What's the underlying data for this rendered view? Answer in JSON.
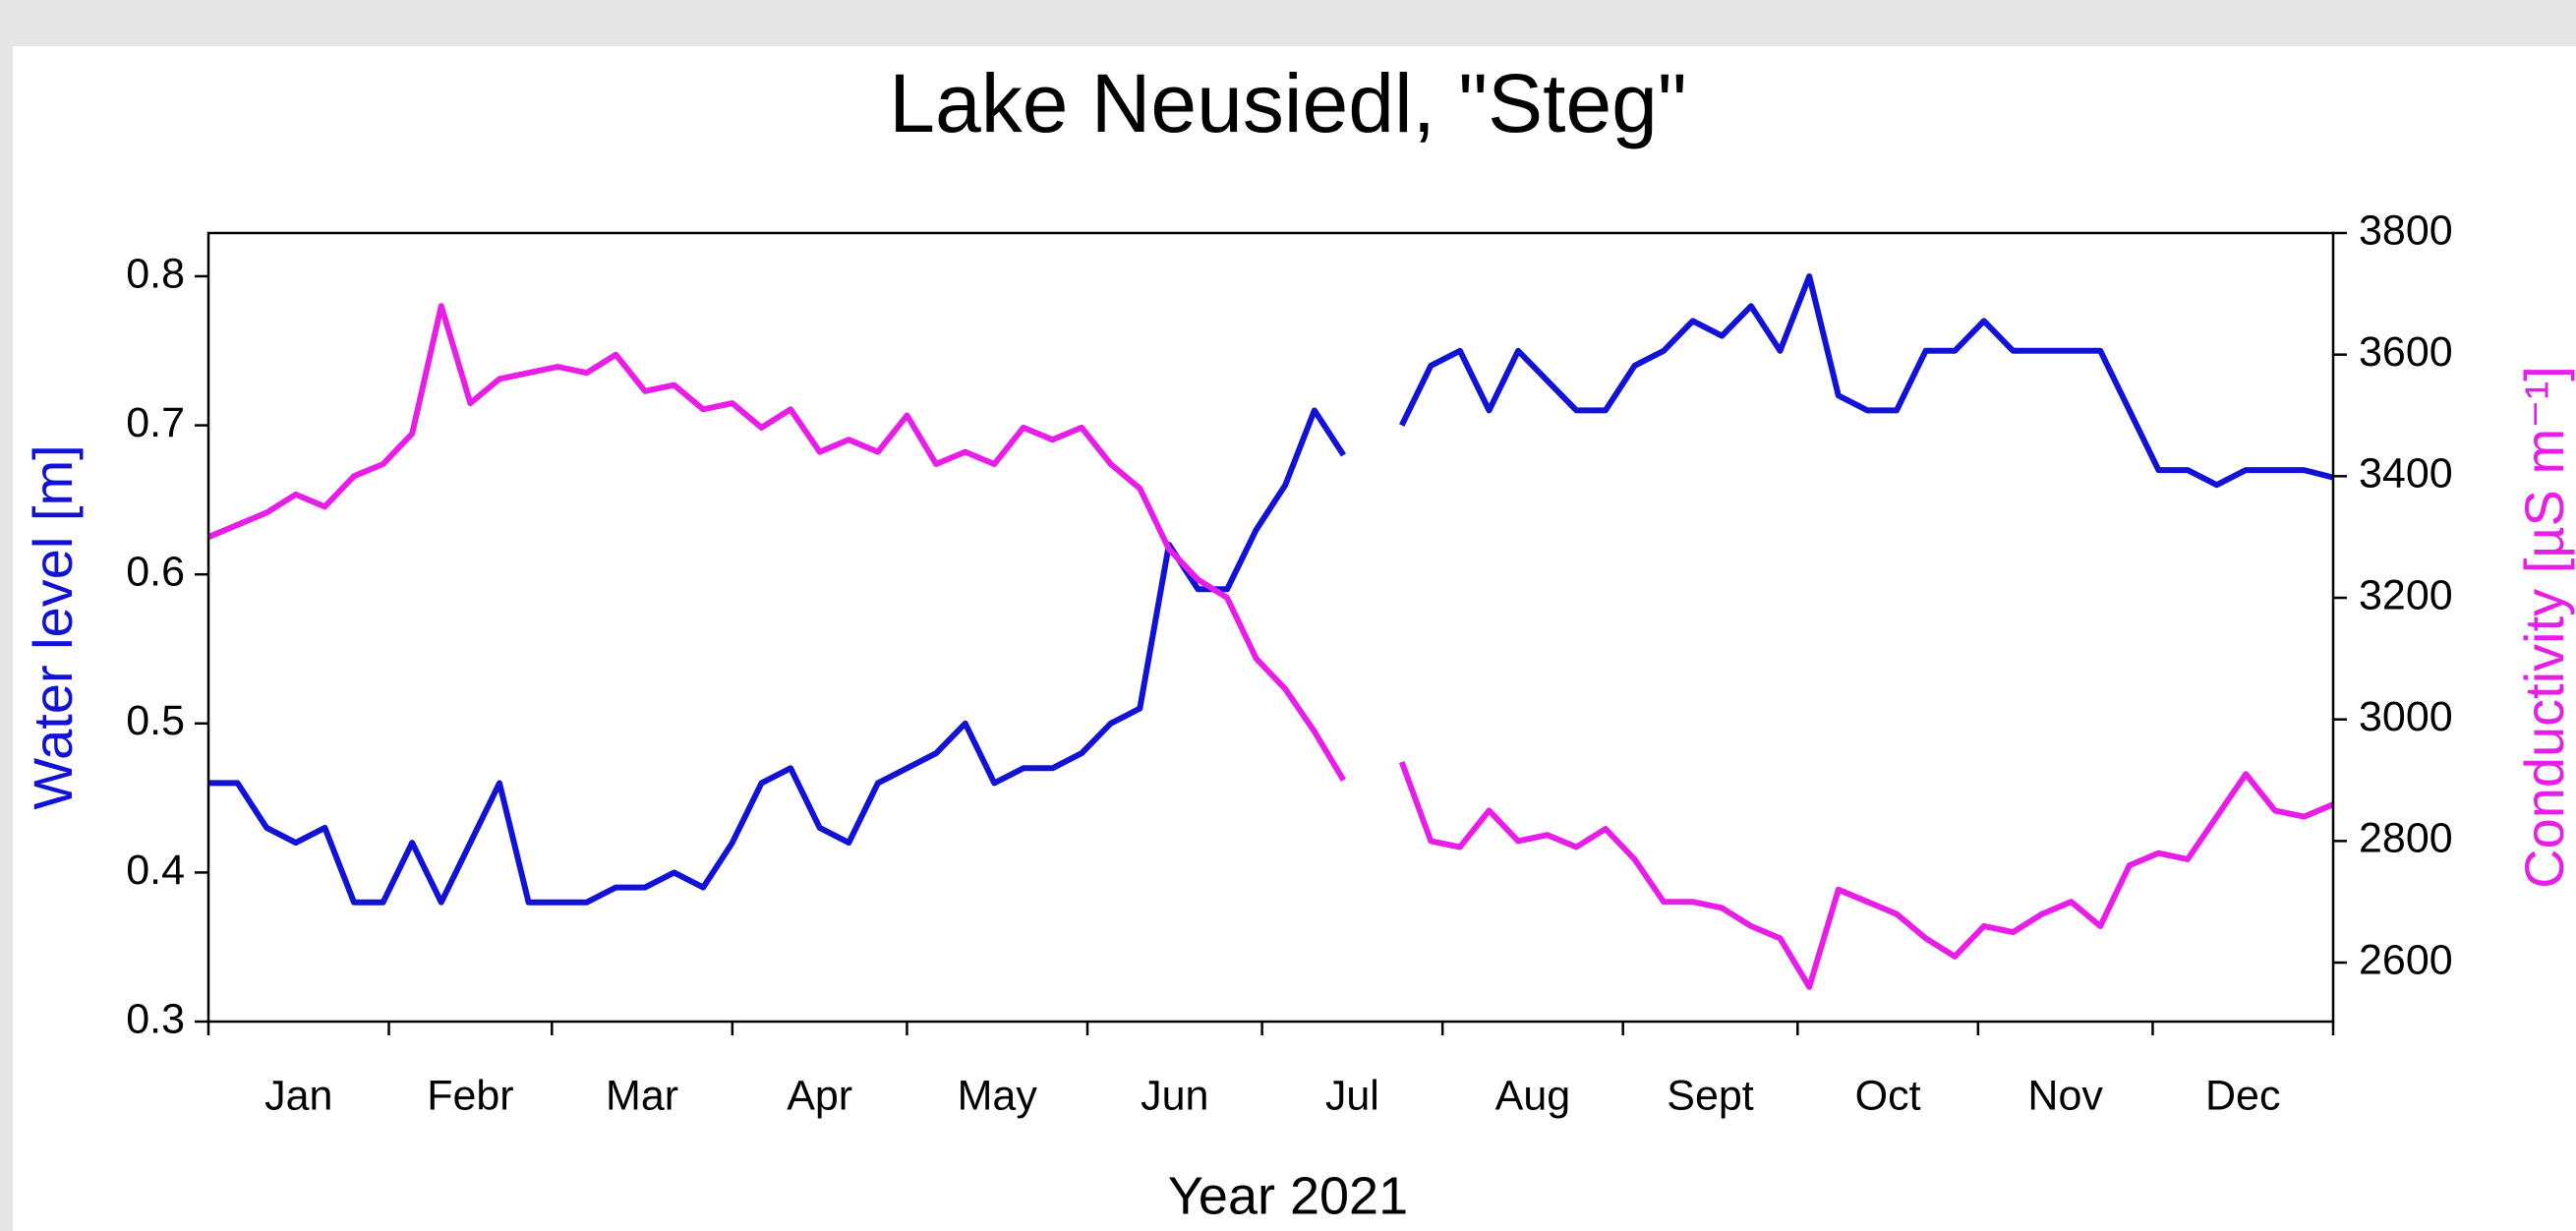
{
  "chart_data": {
    "type": "line",
    "title": "Lake Neusiedl, \"Steg\"",
    "xlabel": "Year 2021",
    "ylabel": "Water level [m]",
    "y2label": "Conductivity [µS m⁻¹]",
    "months": [
      "Jan",
      "Febr",
      "Mar",
      "Apr",
      "May",
      "Jun",
      "Jul",
      "Aug",
      "Sept",
      "Oct",
      "Nov",
      "Dec"
    ],
    "xlim": [
      0,
      365
    ],
    "xticks": [
      0,
      31,
      59,
      90,
      120,
      151,
      181,
      212,
      243,
      273,
      304,
      334,
      365
    ],
    "ylim": [
      0.3,
      0.829
    ],
    "yticks": [
      0.3,
      0.4,
      0.5,
      0.6,
      0.7,
      0.8
    ],
    "y2lim": [
      2503,
      3800
    ],
    "y2ticks": [
      2600,
      2800,
      3000,
      3200,
      3400,
      3600,
      3800
    ],
    "x": [
      0,
      5,
      10,
      15,
      20,
      25,
      30,
      35,
      40,
      45,
      50,
      55,
      60,
      65,
      70,
      75,
      80,
      85,
      90,
      95,
      100,
      105,
      110,
      115,
      120,
      125,
      130,
      135,
      140,
      145,
      150,
      155,
      160,
      165,
      170,
      175,
      180,
      185,
      190,
      195,
      200,
      205,
      210,
      215,
      220,
      225,
      230,
      235,
      240,
      245,
      250,
      255,
      260,
      265,
      270,
      275,
      280,
      285,
      290,
      295,
      300,
      305,
      310,
      315,
      320,
      325,
      330,
      335,
      340,
      345,
      350,
      355,
      360,
      365
    ],
    "series": [
      {
        "name": "Water level",
        "color": "#1212d6",
        "axis": "y",
        "values": [
          0.46,
          0.46,
          0.43,
          0.42,
          0.43,
          0.38,
          0.38,
          0.42,
          0.38,
          0.42,
          0.46,
          0.38,
          0.38,
          0.38,
          0.39,
          0.39,
          0.4,
          0.39,
          0.42,
          0.46,
          0.47,
          0.43,
          0.42,
          0.46,
          0.47,
          0.48,
          0.5,
          0.46,
          0.47,
          0.47,
          0.48,
          0.5,
          0.51,
          0.62,
          0.59,
          0.59,
          0.63,
          0.66,
          0.71,
          0.68,
          null,
          0.7,
          0.74,
          0.75,
          0.71,
          0.75,
          0.73,
          0.71,
          0.71,
          0.74,
          0.75,
          0.77,
          0.76,
          0.78,
          0.75,
          0.8,
          0.72,
          0.71,
          0.71,
          0.75,
          0.75,
          0.77,
          0.75,
          0.75,
          0.75,
          0.75,
          0.71,
          0.67,
          0.67,
          0.66,
          0.67,
          0.67,
          0.67,
          0.665
        ]
      },
      {
        "name": "Conductivity",
        "color": "#e81ee8",
        "axis": "y2",
        "values": [
          3300,
          3320,
          3340,
          3370,
          3350,
          3400,
          3420,
          3470,
          3680,
          3520,
          3560,
          3570,
          3580,
          3570,
          3600,
          3540,
          3550,
          3510,
          3520,
          3480,
          3510,
          3440,
          3460,
          3440,
          3500,
          3420,
          3440,
          3420,
          3480,
          3460,
          3480,
          3420,
          3380,
          3280,
          3230,
          3200,
          3100,
          3050,
          2980,
          2900,
          null,
          2930,
          2800,
          2790,
          2850,
          2800,
          2810,
          2790,
          2820,
          2770,
          2700,
          2700,
          2690,
          2660,
          2640,
          2560,
          2720,
          2700,
          2680,
          2640,
          2610,
          2660,
          2650,
          2680,
          2700,
          2660,
          2760,
          2780,
          2770,
          2840,
          2910,
          2850,
          2840,
          2860
        ]
      }
    ]
  }
}
